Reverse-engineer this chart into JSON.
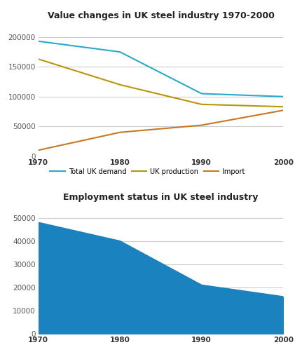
{
  "chart1": {
    "title": "Value changes in UK steel industry 1970-2000",
    "years": [
      1970,
      1980,
      1990,
      2000
    ],
    "total_uk_demand": [
      193000,
      175000,
      105000,
      100000
    ],
    "uk_production": [
      163000,
      120000,
      87000,
      83000
    ],
    "import": [
      10000,
      40000,
      52000,
      77000
    ],
    "colors": {
      "total_uk_demand": "#2AAACB",
      "uk_production": "#B8960A",
      "import": "#C87820"
    },
    "ylim": [
      0,
      220000
    ],
    "yticks": [
      0,
      50000,
      100000,
      150000,
      200000
    ],
    "legend_labels": [
      "Total UK demand",
      "UK production",
      "Import"
    ],
    "bg_color": "#ffffff",
    "grid_color": "#cccccc"
  },
  "chart2": {
    "title": "Employment status in UK steel industry",
    "years": [
      1970,
      1980,
      1990,
      2000
    ],
    "employment": [
      48000,
      40000,
      21000,
      16000
    ],
    "fill_color": "#1A82BF",
    "line_color": "#1A82BF",
    "ylim": [
      0,
      55000
    ],
    "yticks": [
      0,
      10000,
      20000,
      30000,
      40000,
      50000
    ],
    "bg_color": "#ffffff",
    "grid_color": "#cccccc"
  },
  "fig_bg_color": "#ffffff",
  "outer_bg": "#e8e8e8"
}
